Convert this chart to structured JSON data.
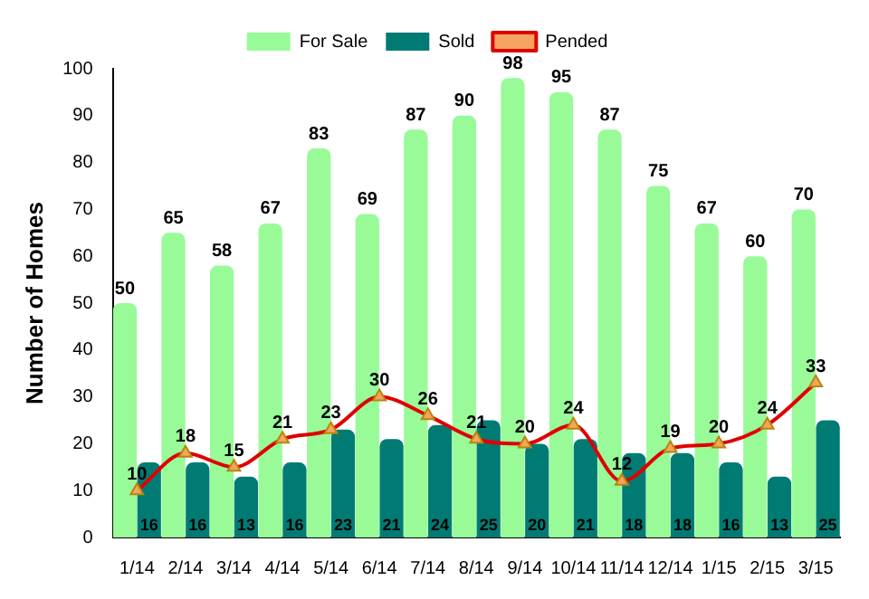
{
  "chart_data": {
    "type": "bar",
    "ylabel": "Number of Homes",
    "categories": [
      "1/14",
      "2/14",
      "3/14",
      "4/14",
      "5/14",
      "6/14",
      "7/14",
      "8/14",
      "9/14",
      "10/14",
      "11/14",
      "12/14",
      "1/15",
      "2/15",
      "3/15"
    ],
    "series": [
      {
        "name": "For Sale",
        "color": "#98fb98",
        "values": [
          50,
          65,
          58,
          67,
          83,
          69,
          87,
          90,
          98,
          95,
          87,
          75,
          67,
          60,
          70
        ]
      },
      {
        "name": "Sold",
        "color": "#007b74",
        "values": [
          16,
          16,
          13,
          16,
          23,
          21,
          24,
          25,
          20,
          21,
          18,
          18,
          16,
          13,
          25
        ]
      },
      {
        "name": "Pended",
        "type": "line",
        "color": "#e00000",
        "marker": "triangle",
        "values": [
          10,
          18,
          15,
          21,
          23,
          30,
          26,
          21,
          20,
          24,
          12,
          19,
          20,
          24,
          33
        ]
      }
    ],
    "ylim": [
      0,
      100
    ],
    "yticks": [
      0,
      10,
      20,
      30,
      40,
      50,
      60,
      70,
      80,
      90,
      100
    ],
    "grid": false,
    "legend": "top",
    "data_labels": true
  }
}
